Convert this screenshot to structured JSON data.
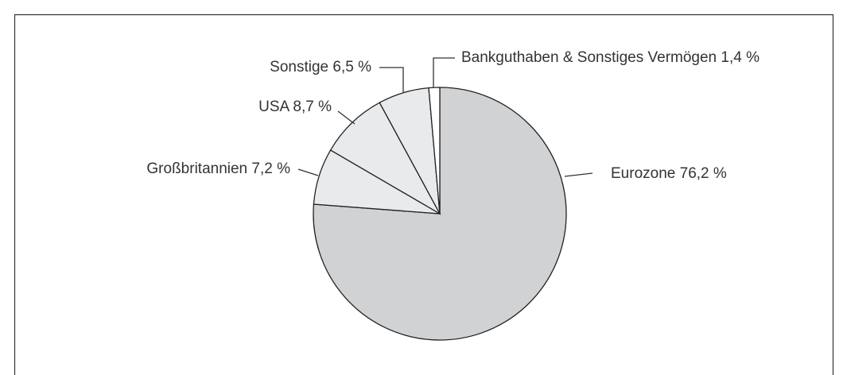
{
  "chart_data": {
    "type": "pie",
    "categories": [
      "Eurozone",
      "Großbritannien",
      "USA",
      "Sonstige",
      "Bankguthaben & Sonstiges Vermögen"
    ],
    "values": [
      76.2,
      7.2,
      8.7,
      6.5,
      1.4
    ],
    "value_labels": [
      "76,2 %",
      "7,2 %",
      "8,7 %",
      "6,5 %",
      "1,4 %"
    ],
    "colors": [
      "#d1d2d4",
      "#e9eaec",
      "#e9eaec",
      "#e9eaec",
      "#ffffff"
    ]
  }
}
